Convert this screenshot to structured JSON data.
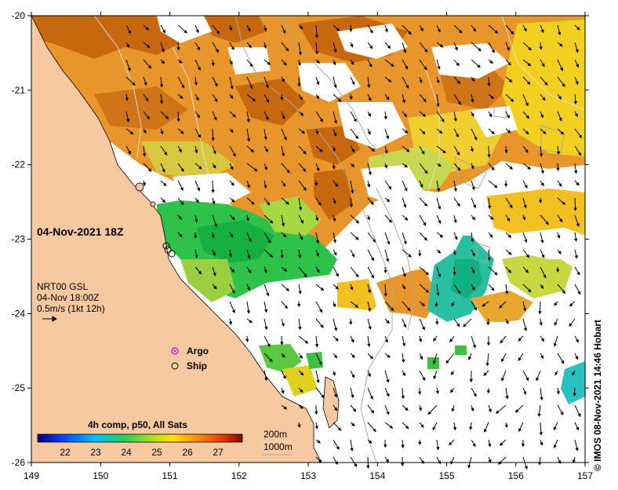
{
  "map": {
    "title_datetime": "04-Nov-2021 18Z",
    "current_source": "NRT00 GSL",
    "current_time": "04-Nov 18:00Z",
    "current_scale": "0.5m/s (1kt 12h)",
    "legend_argo": "Argo",
    "legend_ship": "Ship",
    "colorbar_title": "4h comp, p50, All Sats",
    "colorbar_ticks": [
      "22",
      "23",
      "24",
      "25",
      "26",
      "27"
    ],
    "contour_200": "200m",
    "contour_1000": "1000m",
    "credit": "© IMOS 08-Nov-2021 14:46 Hobart",
    "x_ticks": [
      "149",
      "150",
      "151",
      "152",
      "153",
      "154",
      "155",
      "156",
      "157"
    ],
    "y_ticks": [
      "-20",
      "-21",
      "-22",
      "-23",
      "-24",
      "-25",
      "-26"
    ],
    "colors": {
      "land": "#f7c9a0",
      "nodata": "#ffffff",
      "sst_orange": "#e8962a",
      "sst_brown": "#c8680e",
      "sst_yellow": "#f2d020",
      "sst_green": "#2ec24a",
      "sst_teal": "#28c0a0",
      "argo": "#e020e0"
    }
  }
}
